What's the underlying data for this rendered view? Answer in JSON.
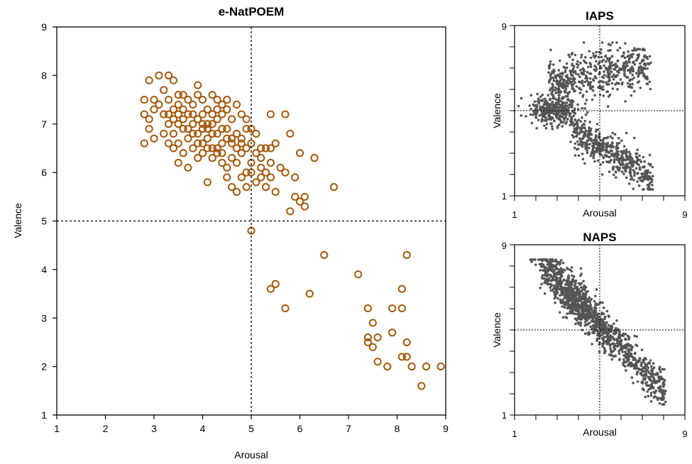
{
  "chart_data": [
    {
      "type": "scatter",
      "title": "e-NatPOEM",
      "xlabel": "Arousal",
      "ylabel": "Valence",
      "xlim": [
        1,
        9
      ],
      "ylim": [
        1,
        9
      ],
      "xticks": [
        "1",
        "2",
        "3",
        "4",
        "5",
        "6",
        "7",
        "8",
        "9"
      ],
      "yticks": [
        "1",
        "2",
        "3",
        "4",
        "5",
        "6",
        "7",
        "8",
        "9"
      ],
      "reference_lines": {
        "x": 5,
        "y": 5
      },
      "marker": "open-circle",
      "color": "#a55a0c",
      "grid": false,
      "points": [
        [
          2.8,
          7.5
        ],
        [
          2.9,
          7.9
        ],
        [
          3.0,
          7.5
        ],
        [
          3.1,
          8.0
        ],
        [
          3.3,
          8.0
        ],
        [
          3.2,
          7.7
        ],
        [
          3.4,
          7.9
        ],
        [
          3.5,
          7.6
        ],
        [
          3.0,
          7.3
        ],
        [
          2.8,
          7.2
        ],
        [
          2.9,
          7.1
        ],
        [
          3.1,
          7.4
        ],
        [
          3.2,
          7.2
        ],
        [
          3.3,
          7.5
        ],
        [
          3.4,
          7.3
        ],
        [
          3.5,
          7.0
        ],
        [
          3.6,
          7.3
        ],
        [
          3.7,
          7.5
        ],
        [
          3.8,
          7.2
        ],
        [
          3.9,
          7.8
        ],
        [
          4.0,
          7.5
        ],
        [
          4.1,
          7.3
        ],
        [
          4.2,
          7.6
        ],
        [
          4.3,
          7.3
        ],
        [
          4.4,
          7.2
        ],
        [
          4.5,
          7.5
        ],
        [
          4.6,
          7.1
        ],
        [
          4.7,
          7.4
        ],
        [
          4.8,
          7.2
        ],
        [
          4.9,
          7.1
        ],
        [
          3.3,
          7.0
        ],
        [
          3.4,
          6.8
        ],
        [
          3.5,
          6.6
        ],
        [
          3.6,
          6.9
        ],
        [
          3.7,
          6.7
        ],
        [
          3.8,
          7.0
        ],
        [
          3.9,
          6.8
        ],
        [
          4.0,
          6.9
        ],
        [
          4.1,
          6.7
        ],
        [
          4.2,
          7.0
        ],
        [
          4.3,
          6.8
        ],
        [
          4.4,
          6.6
        ],
        [
          4.5,
          6.9
        ],
        [
          4.6,
          6.7
        ],
        [
          4.7,
          6.8
        ],
        [
          4.8,
          6.6
        ],
        [
          4.9,
          6.9
        ],
        [
          5.0,
          6.9
        ],
        [
          5.1,
          6.8
        ],
        [
          5.2,
          6.5
        ],
        [
          3.4,
          6.5
        ],
        [
          3.6,
          6.4
        ],
        [
          3.8,
          6.5
        ],
        [
          3.9,
          6.3
        ],
        [
          4.0,
          6.4
        ],
        [
          4.1,
          6.5
        ],
        [
          4.2,
          6.3
        ],
        [
          4.3,
          6.4
        ],
        [
          4.4,
          6.2
        ],
        [
          4.5,
          6.1
        ],
        [
          4.6,
          6.3
        ],
        [
          4.7,
          6.2
        ],
        [
          4.8,
          6.4
        ],
        [
          4.9,
          6.0
        ],
        [
          5.0,
          6.2
        ],
        [
          5.1,
          6.4
        ],
        [
          5.2,
          6.3
        ],
        [
          5.3,
          6.5
        ],
        [
          5.4,
          6.5
        ],
        [
          5.5,
          6.6
        ],
        [
          3.5,
          6.2
        ],
        [
          3.7,
          6.1
        ],
        [
          4.1,
          5.8
        ],
        [
          4.5,
          5.9
        ],
        [
          4.6,
          5.7
        ],
        [
          4.7,
          5.6
        ],
        [
          4.8,
          5.9
        ],
        [
          4.9,
          5.7
        ],
        [
          5.0,
          6.0
        ],
        [
          5.1,
          5.8
        ],
        [
          5.2,
          5.9
        ],
        [
          5.3,
          5.7
        ],
        [
          5.4,
          5.9
        ],
        [
          5.5,
          5.6
        ],
        [
          5.2,
          6.1
        ],
        [
          5.3,
          6.0
        ],
        [
          5.4,
          6.2
        ],
        [
          5.6,
          6.1
        ],
        [
          5.7,
          6.0
        ],
        [
          5.8,
          6.8
        ],
        [
          5.9,
          5.9
        ],
        [
          6.0,
          6.4
        ],
        [
          6.3,
          6.3
        ],
        [
          5.4,
          7.2
        ],
        [
          5.7,
          7.2
        ],
        [
          5.9,
          5.5
        ],
        [
          6.0,
          5.4
        ],
        [
          6.1,
          5.5
        ],
        [
          6.1,
          5.3
        ],
        [
          5.8,
          5.2
        ],
        [
          6.7,
          5.7
        ],
        [
          2.8,
          6.6
        ],
        [
          2.9,
          6.9
        ],
        [
          3.0,
          6.7
        ],
        [
          3.2,
          6.8
        ],
        [
          3.3,
          6.6
        ],
        [
          3.4,
          7.1
        ],
        [
          3.6,
          7.1
        ],
        [
          3.7,
          6.9
        ],
        [
          3.9,
          7.1
        ],
        [
          4.0,
          7.0
        ],
        [
          4.2,
          6.8
        ],
        [
          4.3,
          7.1
        ],
        [
          4.4,
          6.9
        ],
        [
          4.5,
          6.7
        ],
        [
          4.6,
          6.6
        ],
        [
          4.7,
          6.5
        ],
        [
          4.8,
          6.7
        ],
        [
          4.9,
          6.5
        ],
        [
          5.0,
          6.6
        ],
        [
          3.5,
          7.4
        ],
        [
          3.6,
          7.6
        ],
        [
          3.8,
          7.4
        ],
        [
          3.9,
          7.6
        ],
        [
          4.0,
          7.2
        ],
        [
          4.1,
          7.0
        ],
        [
          4.2,
          7.2
        ],
        [
          4.3,
          7.5
        ],
        [
          4.4,
          7.4
        ],
        [
          4.5,
          7.3
        ],
        [
          3.3,
          7.2
        ],
        [
          3.5,
          7.2
        ],
        [
          3.7,
          7.2
        ],
        [
          3.8,
          6.8
        ],
        [
          3.9,
          6.6
        ],
        [
          4.0,
          6.6
        ],
        [
          4.1,
          6.9
        ],
        [
          4.2,
          6.5
        ],
        [
          4.3,
          6.5
        ],
        [
          4.4,
          6.4
        ],
        [
          5.0,
          4.8
        ],
        [
          6.5,
          4.3
        ],
        [
          7.2,
          3.9
        ],
        [
          8.2,
          4.3
        ],
        [
          5.4,
          3.6
        ],
        [
          5.5,
          3.7
        ],
        [
          6.2,
          3.5
        ],
        [
          5.7,
          3.2
        ],
        [
          8.1,
          3.6
        ],
        [
          7.4,
          3.2
        ],
        [
          7.9,
          3.2
        ],
        [
          8.1,
          3.2
        ],
        [
          7.5,
          2.9
        ],
        [
          7.4,
          2.6
        ],
        [
          7.4,
          2.5
        ],
        [
          7.6,
          2.6
        ],
        [
          7.9,
          2.7
        ],
        [
          8.2,
          2.5
        ],
        [
          7.5,
          2.4
        ],
        [
          7.6,
          2.1
        ],
        [
          7.8,
          2.0
        ],
        [
          8.1,
          2.2
        ],
        [
          8.2,
          2.2
        ],
        [
          8.3,
          2.0
        ],
        [
          8.6,
          2.0
        ],
        [
          8.9,
          2.0
        ],
        [
          8.5,
          1.6
        ]
      ]
    },
    {
      "type": "scatter",
      "title": "IAPS",
      "xlabel": "Arousal",
      "ylabel": "Valence",
      "xlim": [
        1,
        9
      ],
      "ylim": [
        1,
        9
      ],
      "xticks": [
        "1",
        "9"
      ],
      "yticks": [
        "1",
        "9"
      ],
      "reference_lines": {
        "x": 5,
        "y": 5
      },
      "marker": "filled-dot",
      "color": "#555555",
      "grid": false
    },
    {
      "type": "scatter",
      "title": "NAPS",
      "xlabel": "Arousal",
      "ylabel": "Valence",
      "xlim": [
        1,
        9
      ],
      "ylim": [
        1,
        9
      ],
      "xticks": [
        "1",
        "9"
      ],
      "yticks": [
        "1",
        "9"
      ],
      "reference_lines": {
        "x": 5,
        "y": 5
      },
      "marker": "filled-dot",
      "color": "#555555",
      "grid": false
    }
  ]
}
